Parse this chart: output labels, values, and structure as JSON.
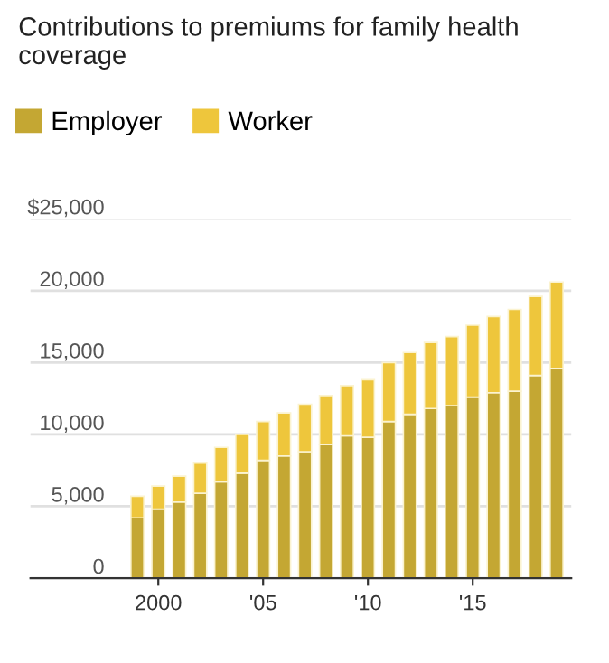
{
  "chart_data": {
    "type": "bar",
    "stacked": true,
    "title": "Contributions to premiums for family health coverage",
    "x": [
      1999,
      2000,
      2001,
      2002,
      2003,
      2004,
      2005,
      2006,
      2007,
      2008,
      2009,
      2010,
      2011,
      2012,
      2013,
      2014,
      2015,
      2016,
      2017,
      2018,
      2019
    ],
    "series": [
      {
        "name": "Employer",
        "color": "#c4a733",
        "values": [
          4200,
          4800,
          5300,
          5900,
          6700,
          7300,
          8200,
          8500,
          8800,
          9300,
          9900,
          9800,
          10900,
          11400,
          11800,
          12000,
          12600,
          12900,
          13000,
          14100,
          14600
        ]
      },
      {
        "name": "Worker",
        "color": "#eec63c",
        "values": [
          1500,
          1600,
          1800,
          2100,
          2400,
          2700,
          2700,
          3000,
          3300,
          3400,
          3500,
          4000,
          4100,
          4300,
          4600,
          4800,
          5000,
          5300,
          5700,
          5500,
          6000
        ]
      }
    ],
    "xlim": [
      1993.9,
      2019.7
    ],
    "xticks": [
      2000,
      {
        "value": 2005,
        "label": "'05"
      },
      {
        "value": 2010,
        "label": "'10"
      },
      {
        "value": 2015,
        "label": "'15"
      }
    ],
    "ylim": [
      0,
      25000
    ],
    "yticks": [
      0,
      {
        "value": 5000,
        "label": "5,000"
      },
      {
        "value": 10000,
        "label": "10,000"
      },
      {
        "value": 15000,
        "label": "15,000"
      },
      {
        "value": 20000,
        "label": "20,000"
      },
      {
        "value": 25000,
        "label": "$25,000"
      }
    ],
    "grid": "y",
    "legend": "top left"
  }
}
